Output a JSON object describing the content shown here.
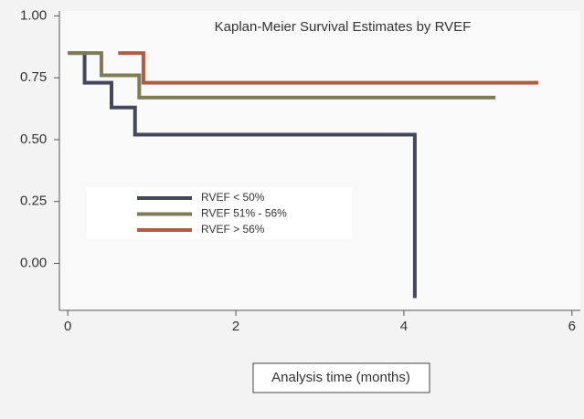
{
  "chart_data": {
    "type": "step",
    "title": "Kaplan-Meier Survival Estimates by RVEF",
    "x_label": "Analysis time (months)",
    "xlim": [
      -0.1,
      6.1
    ],
    "xticks": [
      0,
      2,
      4,
      6
    ],
    "ylim": [
      -0.19,
      1.02
    ],
    "yticks": [
      {
        "value": 0,
        "label": "0.00"
      },
      0.25,
      {
        "value": 0.5,
        "label": "0.50"
      },
      0.75,
      {
        "value": 1,
        "label": "1.00"
      }
    ],
    "series": [
      {
        "name": "RVEF < 50%",
        "color": "#46465e",
        "x": [
          0,
          0.2,
          0.52,
          0.8,
          4.13
        ],
        "values": [
          0.85,
          0.73,
          0.63,
          0.52,
          -0.14
        ]
      },
      {
        "name": "RVEF 51% - 56%",
        "color": "#7d7c55",
        "x": [
          0,
          0.4,
          0.85,
          5.09
        ],
        "values": [
          0.85,
          0.76,
          0.67,
          0.67
        ]
      },
      {
        "name": "RVEF > 56%",
        "color": "#b25c42",
        "x": [
          0.6,
          0.9,
          5.6
        ],
        "values": [
          0.85,
          0.73,
          0.73
        ]
      }
    ]
  }
}
